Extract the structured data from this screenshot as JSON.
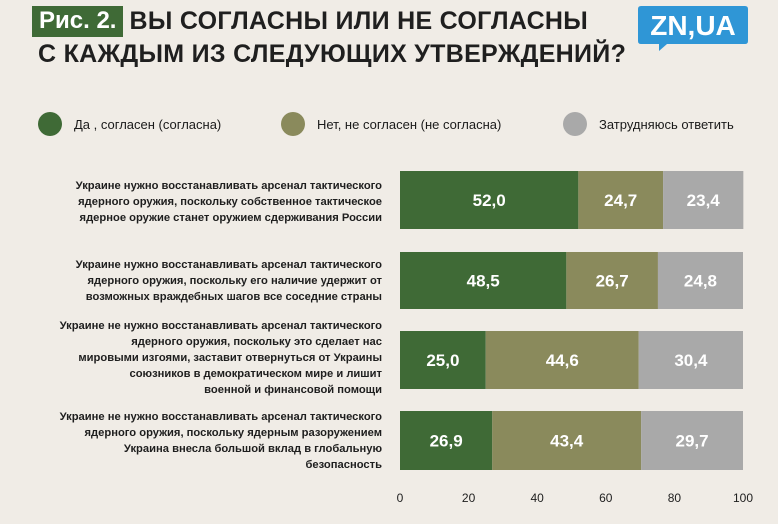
{
  "header": {
    "figure_label": "Рис. 2.",
    "title_line1": "ВЫ СОГЛАСНЫ ИЛИ НЕ СОГЛАСНЫ",
    "title_line2": "С КАЖДЫМ ИЗ СЛЕДУЮЩИХ УТВЕРЖДЕНИЙ?"
  },
  "logo": {
    "text": "ZN,UA",
    "color": "#2f96d6"
  },
  "colors": {
    "agree": "#3f6a36",
    "disagree": "#8a8a5c",
    "unsure": "#a9a9a9",
    "background": "#f0ece6"
  },
  "chart_data": {
    "type": "bar",
    "orientation": "horizontal",
    "stacked": true,
    "categories": [
      "Украине нужно восстанавливать арсенал тактического ядерного оружия, поскольку собственное тактическое ядерное оружие станет оружием сдерживания России",
      "Украине нужно восстанавливать арсенал тактического ядерного оружия, поскольку его наличие удержит от возможных враждебных шагов все соседние страны",
      "Украине не нужно восстанавливать арсенал тактического ядерного оружия, поскольку это сделает нас мировыми изгоями, заставит отвернуться от Украины союзников в демократическом мире и лишит военной и финансовой помощи",
      "Украине не нужно восстанавливать арсенал тактического ядерного оружия, поскольку ядерным разоружением Украина внесла большой вклад в глобальную безопасность"
    ],
    "category_lines": [
      [
        "Украине нужно восстанавливать арсенал тактического",
        "ядерного оружия, поскольку собственное тактическое",
        "ядерное оружие станет оружием сдерживания России"
      ],
      [
        "Украине нужно восстанавливать арсенал тактического",
        "ядерного оружия, поскольку его наличие удержит от",
        "возможных враждебных шагов все соседние страны"
      ],
      [
        "Украине не нужно восстанавливать арсенал тактического",
        "ядерного оружия, поскольку это сделает нас",
        "мировыми изгоями, заставит отвернуться от Украины",
        "союзников в демократическом мире и лишит",
        "военной и финансовой помощи"
      ],
      [
        "Украине не нужно восстанавливать арсенал тактического",
        "ядерного оружия, поскольку ядерным разоружением",
        "Украина внесла большой вклад в глобальную",
        "безопасность"
      ]
    ],
    "series": [
      {
        "name": "Да , согласен (согласна)",
        "color": "#3f6a36",
        "values": [
          52.0,
          48.5,
          25.0,
          26.9
        ],
        "labels": [
          "52,0",
          "48,5",
          "25,0",
          "26,9"
        ]
      },
      {
        "name": "Нет, не согласен (не согласна)",
        "color": "#8a8a5c",
        "values": [
          24.7,
          26.7,
          44.6,
          43.4
        ],
        "labels": [
          "24,7",
          "26,7",
          "44,6",
          "43,4"
        ]
      },
      {
        "name": "Затрудняюсь ответить",
        "color": "#a9a9a9",
        "values": [
          23.4,
          24.8,
          30.4,
          29.7
        ],
        "labels": [
          "23,4",
          "24,8",
          "30,4",
          "29,7"
        ]
      }
    ],
    "xlim": [
      0,
      100
    ],
    "xticks": [
      "0",
      "20",
      "40",
      "60",
      "80",
      "100"
    ],
    "legend_position": "top",
    "grid": false
  }
}
